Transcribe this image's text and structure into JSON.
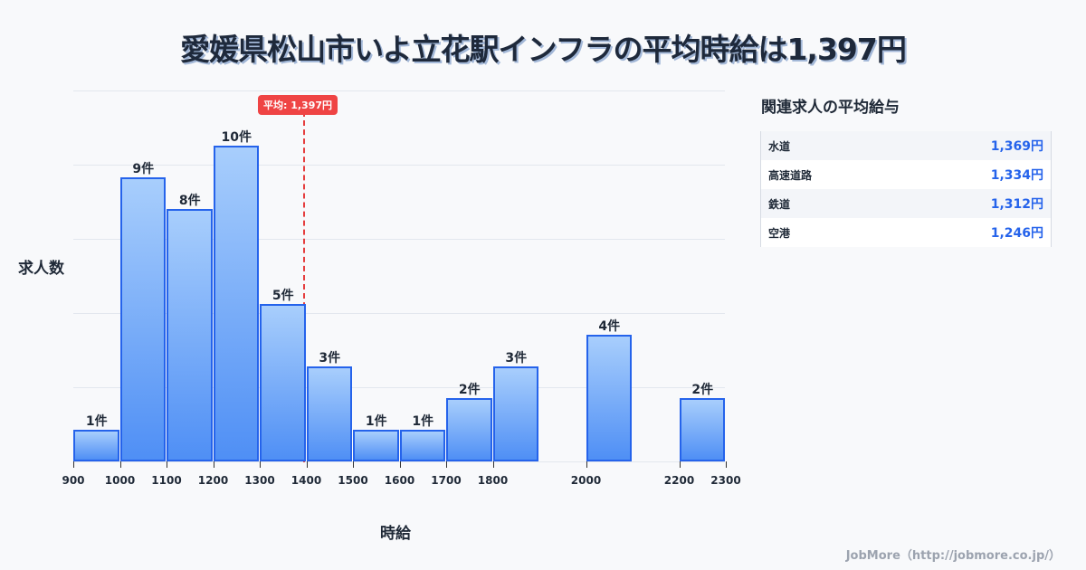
{
  "title": "愛媛県松山市いよ立花駅インフラの平均時給は1,397円",
  "chart_data": {
    "type": "bar",
    "title": "愛媛県松山市いよ立花駅インフラの平均時給は1,397円",
    "xlabel": "時給",
    "ylabel": "求人数",
    "x_ticks": [
      "900",
      "1000",
      "1100",
      "1200",
      "1300",
      "1400",
      "1500",
      "1600",
      "1700",
      "1800",
      "2000",
      "2200",
      "2300"
    ],
    "bins": [
      {
        "from": 900,
        "to": 1000,
        "count": 1,
        "label": "1件"
      },
      {
        "from": 1000,
        "to": 1100,
        "count": 9,
        "label": "9件"
      },
      {
        "from": 1100,
        "to": 1200,
        "count": 8,
        "label": "8件"
      },
      {
        "from": 1200,
        "to": 1300,
        "count": 10,
        "label": "10件"
      },
      {
        "from": 1300,
        "to": 1400,
        "count": 5,
        "label": "5件"
      },
      {
        "from": 1400,
        "to": 1500,
        "count": 3,
        "label": "3件"
      },
      {
        "from": 1500,
        "to": 1600,
        "count": 1,
        "label": "1件"
      },
      {
        "from": 1600,
        "to": 1700,
        "count": 1,
        "label": "1件"
      },
      {
        "from": 1700,
        "to": 1800,
        "count": 2,
        "label": "2件"
      },
      {
        "from": 1800,
        "to": 1900,
        "count": 3,
        "label": "3件"
      },
      {
        "from": 2000,
        "to": 2100,
        "count": 4,
        "label": "4件"
      },
      {
        "from": 2200,
        "to": 2300,
        "count": 2,
        "label": "2件"
      }
    ],
    "average": {
      "value": 1397,
      "label": "平均: 1,397円",
      "color": "#ef4444"
    },
    "grid": true,
    "bar_color": "#2563eb"
  },
  "side_panel": {
    "title": "関連求人の平均給与",
    "rows": [
      {
        "name": "水道",
        "value": "1,369円"
      },
      {
        "name": "高速道路",
        "value": "1,334円"
      },
      {
        "name": "鉄道",
        "value": "1,312円"
      },
      {
        "name": "空港",
        "value": "1,246円"
      }
    ]
  },
  "footer": "JobMore（http://jobmore.co.jp/）"
}
